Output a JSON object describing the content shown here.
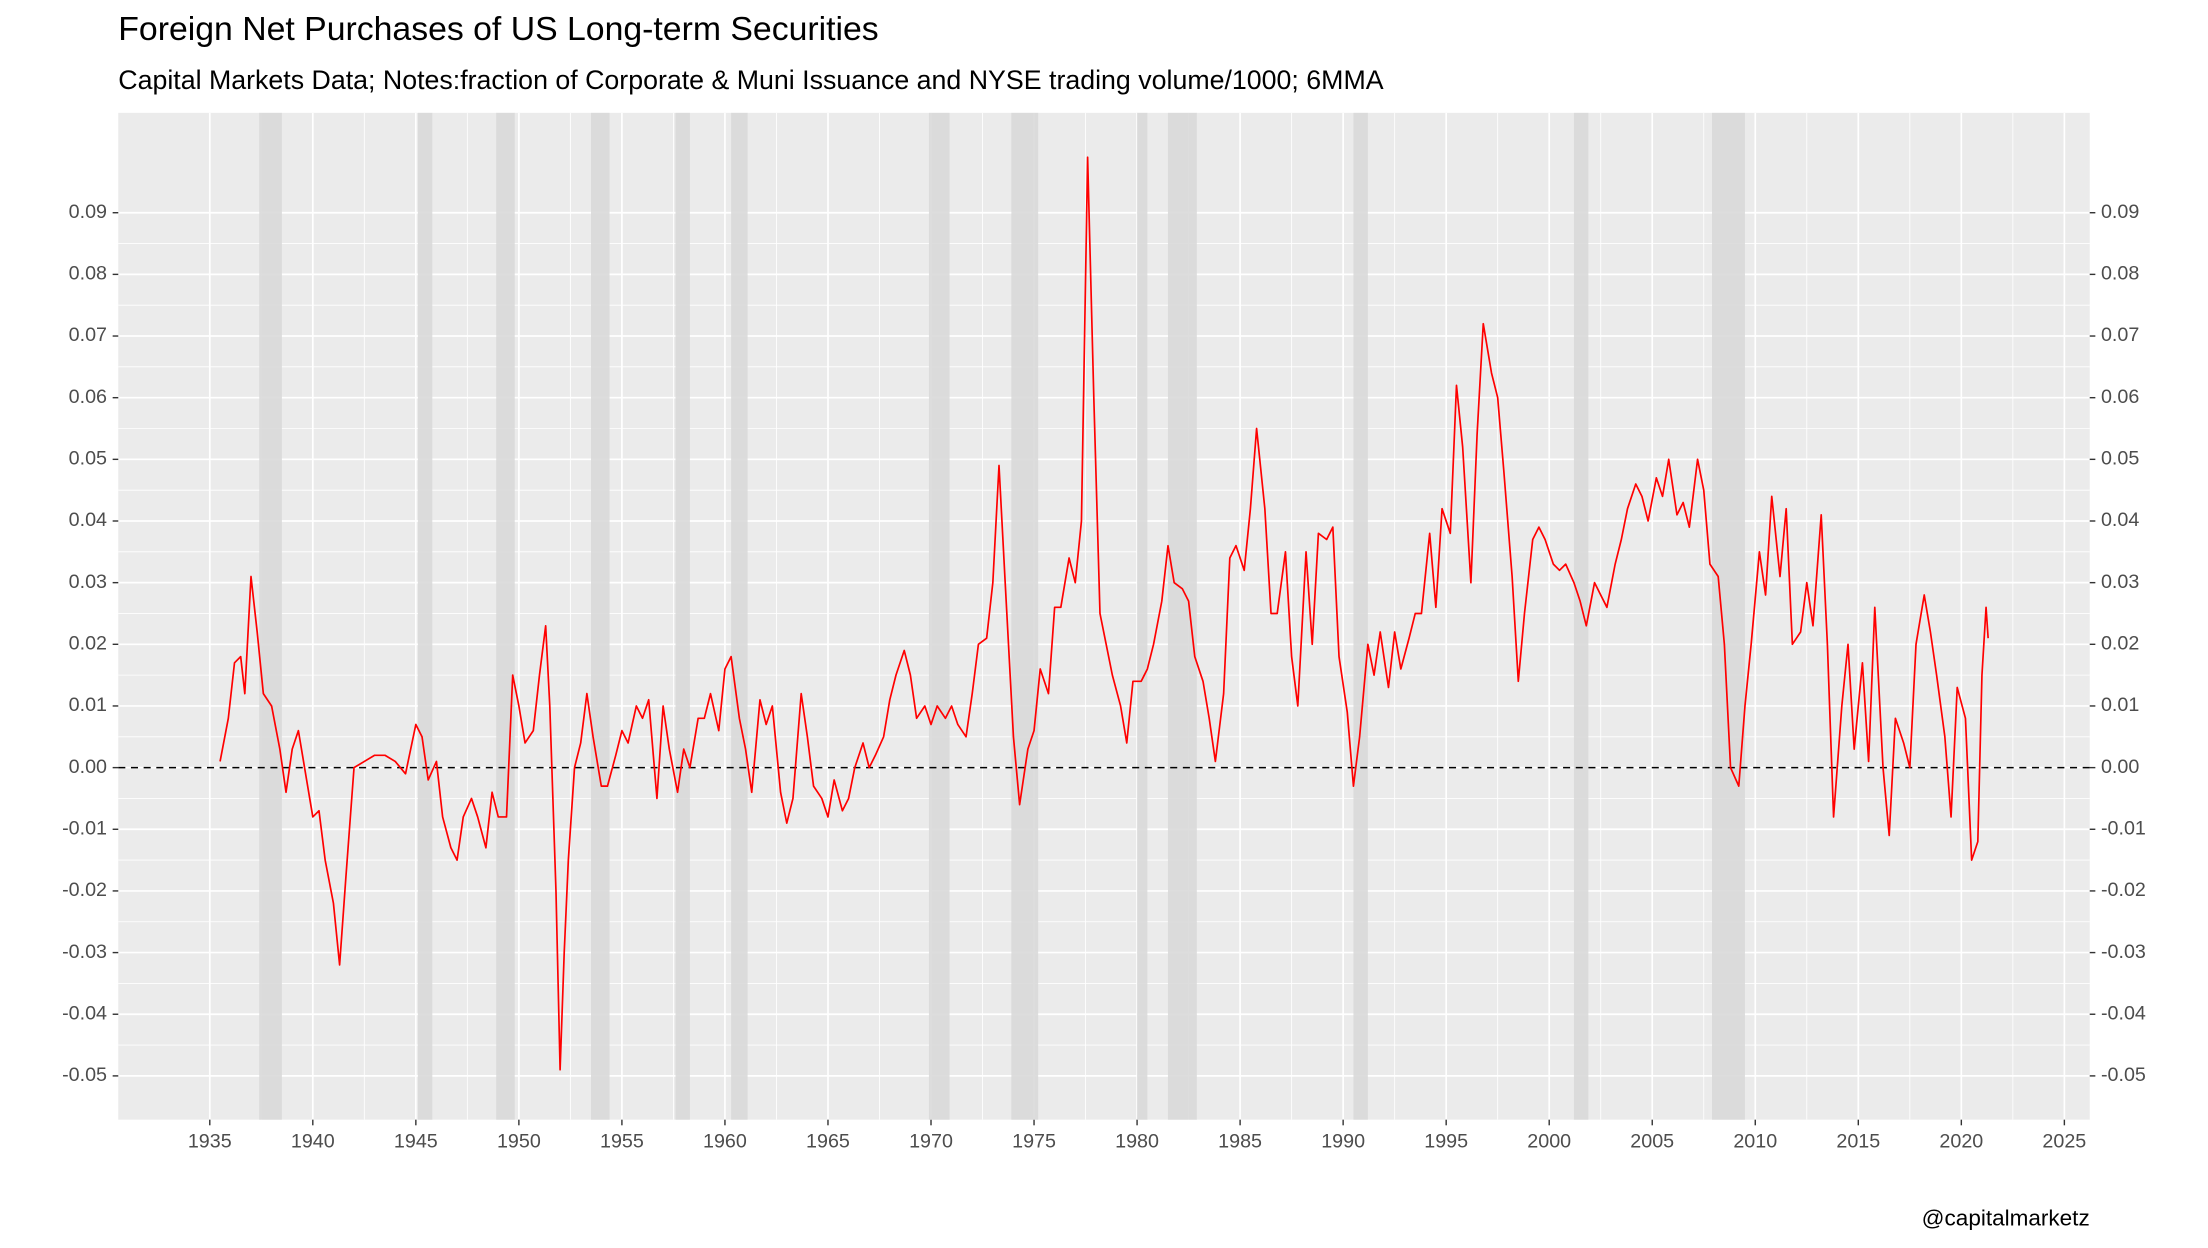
{
  "chart_data": {
    "type": "line",
    "title": "Foreign Net Purchases of US Long-term Securities",
    "subtitle": "Capital Markets Data; Notes:fraction of Corporate & Muni Issuance and NYSE trading volume/1000; 6MMA",
    "caption": "@capitalmarketz",
    "xlim": [
      1930.56,
      2026.23
    ],
    "ylim": [
      -0.0571,
      0.1062
    ],
    "xticks": [
      1935,
      1940,
      1945,
      1950,
      1955,
      1960,
      1965,
      1970,
      1975,
      1980,
      1985,
      1990,
      1995,
      2000,
      2005,
      2010,
      2015,
      2020,
      2025
    ],
    "yticks": [
      -0.05,
      -0.04,
      -0.03,
      -0.02,
      -0.01,
      {
        "value": 0,
        "label": "0.00"
      },
      0.01,
      0.02,
      0.03,
      0.04,
      0.05,
      0.06,
      0.07,
      0.08,
      0.09
    ],
    "y2ticks": [
      -0.05,
      -0.04,
      -0.03,
      -0.02,
      -0.01,
      {
        "value": 0,
        "label": "0.00"
      },
      0.01,
      0.02,
      0.03,
      0.04,
      0.05,
      0.06,
      0.07,
      0.08,
      0.09
    ],
    "grid": true,
    "recessions": [
      [
        1937.4,
        1938.5
      ],
      [
        1945.1,
        1945.8
      ],
      [
        1948.9,
        1949.8
      ],
      [
        1953.5,
        1954.4
      ],
      [
        1957.6,
        1958.3
      ],
      [
        1960.3,
        1961.1
      ],
      [
        1969.9,
        1970.9
      ],
      [
        1973.9,
        1975.2
      ],
      [
        1980.0,
        1980.5
      ],
      [
        1981.5,
        1982.9
      ],
      [
        1990.5,
        1991.2
      ],
      [
        2001.2,
        2001.9
      ],
      [
        2007.9,
        2009.5
      ]
    ],
    "series": [
      {
        "color": "#ff0000",
        "x": [
          1935.5,
          1935.9,
          1936.2,
          1936.5,
          1936.7,
          1937.0,
          1937.3,
          1937.6,
          1938.0,
          1938.4,
          1938.7,
          1939.0,
          1939.3,
          1939.7,
          1940.0,
          1940.3,
          1940.6,
          1941.0,
          1941.3,
          1941.6,
          1942.0,
          1942.5,
          1943.0,
          1943.5,
          1944.0,
          1944.5,
          1945.0,
          1945.3,
          1945.6,
          1946.0,
          1946.3,
          1946.7,
          1947.0,
          1947.3,
          1947.7,
          1948.0,
          1948.4,
          1948.7,
          1949.0,
          1949.4,
          1949.7,
          1950.0,
          1950.3,
          1950.7,
          1951.0,
          1951.3,
          1951.5,
          1951.8,
          1952.0,
          1952.2,
          1952.4,
          1952.7,
          1953.0,
          1953.3,
          1953.6,
          1954.0,
          1954.3,
          1954.7,
          1955.0,
          1955.3,
          1955.7,
          1956.0,
          1956.3,
          1956.7,
          1957.0,
          1957.3,
          1957.7,
          1958.0,
          1958.3,
          1958.7,
          1959.0,
          1959.3,
          1959.7,
          1960.0,
          1960.3,
          1960.7,
          1961.0,
          1961.3,
          1961.7,
          1962.0,
          1962.3,
          1962.7,
          1963.0,
          1963.3,
          1963.7,
          1964.0,
          1964.3,
          1964.7,
          1965.0,
          1965.3,
          1965.7,
          1966.0,
          1966.3,
          1966.7,
          1967.0,
          1967.3,
          1967.7,
          1968.0,
          1968.3,
          1968.7,
          1969.0,
          1969.3,
          1969.7,
          1970.0,
          1970.3,
          1970.7,
          1971.0,
          1971.3,
          1971.7,
          1972.0,
          1972.3,
          1972.7,
          1973.0,
          1973.3,
          1973.6,
          1974.0,
          1974.3,
          1974.7,
          1975.0,
          1975.3,
          1975.7,
          1976.0,
          1976.3,
          1976.7,
          1977.0,
          1977.3,
          1977.6,
          1977.9,
          1978.2,
          1978.5,
          1978.8,
          1979.2,
          1979.5,
          1979.8,
          1980.2,
          1980.5,
          1980.8,
          1981.2,
          1981.5,
          1981.8,
          1982.2,
          1982.5,
          1982.8,
          1983.2,
          1983.5,
          1983.8,
          1984.2,
          1984.5,
          1984.8,
          1985.2,
          1985.5,
          1985.8,
          1986.2,
          1986.5,
          1986.8,
          1987.2,
          1987.5,
          1987.8,
          1988.2,
          1988.5,
          1988.8,
          1989.2,
          1989.5,
          1989.8,
          1990.2,
          1990.5,
          1990.8,
          1991.2,
          1991.5,
          1991.8,
          1992.2,
          1992.5,
          1992.8,
          1993.2,
          1993.5,
          1993.8,
          1994.2,
          1994.5,
          1994.8,
          1995.2,
          1995.5,
          1995.8,
          1996.2,
          1996.5,
          1996.8,
          1997.2,
          1997.5,
          1997.8,
          1998.2,
          1998.5,
          1998.8,
          1999.2,
          1999.5,
          1999.8,
          2000.2,
          2000.5,
          2000.8,
          2001.2,
          2001.5,
          2001.8,
          2002.2,
          2002.5,
          2002.8,
          2003.2,
          2003.5,
          2003.8,
          2004.2,
          2004.5,
          2004.8,
          2005.2,
          2005.5,
          2005.8,
          2006.2,
          2006.5,
          2006.8,
          2007.2,
          2007.5,
          2007.8,
          2008.2,
          2008.5,
          2008.8,
          2009.2,
          2009.5,
          2009.8,
          2010.2,
          2010.5,
          2010.8,
          2011.2,
          2011.5,
          2011.8,
          2012.2,
          2012.5,
          2012.8,
          2013.2,
          2013.5,
          2013.8,
          2014.2,
          2014.5,
          2014.8,
          2015.2,
          2015.5,
          2015.8,
          2016.2,
          2016.5,
          2016.8,
          2017.2,
          2017.5,
          2017.8,
          2018.2,
          2018.5,
          2018.8,
          2019.2,
          2019.5,
          2019.8,
          2020.2,
          2020.5,
          2020.8,
          2021.0,
          2021.2,
          2021.3
        ],
        "values": [
          0.001,
          0.008,
          0.017,
          0.018,
          0.012,
          0.031,
          0.022,
          0.012,
          0.01,
          0.003,
          -0.004,
          0.003,
          0.006,
          -0.002,
          -0.008,
          -0.007,
          -0.015,
          -0.022,
          -0.032,
          -0.018,
          0.0,
          0.001,
          0.002,
          0.002,
          0.001,
          -0.001,
          0.007,
          0.005,
          -0.002,
          0.001,
          -0.008,
          -0.013,
          -0.015,
          -0.008,
          -0.005,
          -0.008,
          -0.013,
          -0.004,
          -0.008,
          -0.008,
          0.015,
          0.01,
          0.004,
          0.006,
          0.015,
          0.023,
          0.01,
          -0.02,
          -0.049,
          -0.03,
          -0.015,
          0.0,
          0.004,
          0.012,
          0.005,
          -0.003,
          -0.003,
          0.002,
          0.006,
          0.004,
          0.01,
          0.008,
          0.011,
          -0.005,
          0.01,
          0.003,
          -0.004,
          0.003,
          0.0,
          0.008,
          0.008,
          0.012,
          0.006,
          0.016,
          0.018,
          0.008,
          0.003,
          -0.004,
          0.011,
          0.007,
          0.01,
          -0.004,
          -0.009,
          -0.005,
          0.012,
          0.005,
          -0.003,
          -0.005,
          -0.008,
          -0.002,
          -0.007,
          -0.005,
          0.0,
          0.004,
          0.0,
          0.002,
          0.005,
          0.011,
          0.015,
          0.019,
          0.015,
          0.008,
          0.01,
          0.007,
          0.01,
          0.008,
          0.01,
          0.007,
          0.005,
          0.012,
          0.02,
          0.021,
          0.03,
          0.049,
          0.03,
          0.005,
          -0.006,
          0.003,
          0.006,
          0.016,
          0.012,
          0.026,
          0.026,
          0.034,
          0.03,
          0.04,
          0.099,
          0.06,
          0.025,
          0.02,
          0.015,
          0.01,
          0.004,
          0.014,
          0.014,
          0.016,
          0.02,
          0.027,
          0.036,
          0.03,
          0.029,
          0.027,
          0.018,
          0.014,
          0.008,
          0.001,
          0.012,
          0.034,
          0.036,
          0.032,
          0.042,
          0.055,
          0.042,
          0.025,
          0.025,
          0.035,
          0.018,
          0.01,
          0.035,
          0.02,
          0.038,
          0.037,
          0.039,
          0.018,
          0.009,
          -0.003,
          0.005,
          0.02,
          0.015,
          0.022,
          0.013,
          0.022,
          0.016,
          0.021,
          0.025,
          0.025,
          0.038,
          0.026,
          0.042,
          0.038,
          0.062,
          0.052,
          0.03,
          0.054,
          0.072,
          0.064,
          0.06,
          0.048,
          0.031,
          0.014,
          0.025,
          0.037,
          0.039,
          0.037,
          0.033,
          0.032,
          0.033,
          0.03,
          0.027,
          0.023,
          0.03,
          0.028,
          0.026,
          0.033,
          0.037,
          0.042,
          0.046,
          0.044,
          0.04,
          0.047,
          0.044,
          0.05,
          0.041,
          0.043,
          0.039,
          0.05,
          0.045,
          0.033,
          0.031,
          0.02,
          0.0,
          -0.003,
          0.01,
          0.02,
          0.035,
          0.028,
          0.044,
          0.031,
          0.042,
          0.02,
          0.022,
          0.03,
          0.023,
          0.041,
          0.02,
          -0.008,
          0.01,
          0.02,
          0.003,
          0.017,
          0.001,
          0.026,
          0.0,
          -0.011,
          0.008,
          0.004,
          0.0,
          0.02,
          0.028,
          0.022,
          0.015,
          0.005,
          -0.008,
          0.013,
          0.008,
          -0.015,
          -0.012,
          0.015,
          0.026,
          0.021
        ]
      }
    ]
  }
}
